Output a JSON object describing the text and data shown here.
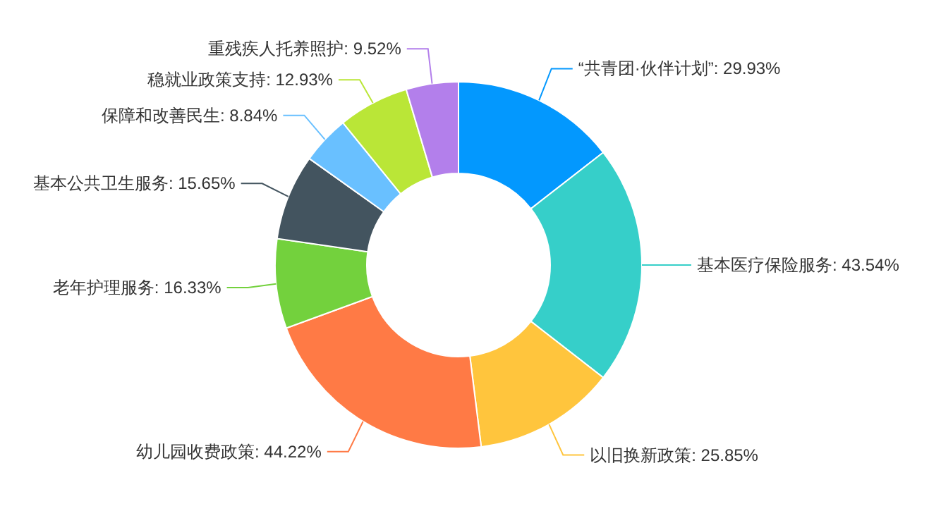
{
  "chart_data": {
    "type": "donut",
    "categories": [
      "“共青团·伙伴计划”",
      "基本医疗保险服务",
      "以旧换新政策",
      "幼儿园收费政策",
      "老年护理服务",
      "基本公共卫生服务",
      "保障和改善民生",
      "稳就业政策支持",
      "重残疾人托养照护"
    ],
    "values": [
      29.93,
      43.54,
      25.85,
      44.22,
      16.33,
      15.65,
      8.84,
      12.93,
      9.52
    ],
    "value_labels": [
      "29.93%",
      "43.54%",
      "25.85%",
      "44.22%",
      "16.33%",
      "15.65%",
      "8.84%",
      "12.93%",
      "9.52%"
    ],
    "colors": [
      "#0398fe",
      "#36cfc9",
      "#ffc53d",
      "#ff7a45",
      "#73d13d",
      "#43545f",
      "#69c0ff",
      "#bae637",
      "#b37feb"
    ]
  }
}
